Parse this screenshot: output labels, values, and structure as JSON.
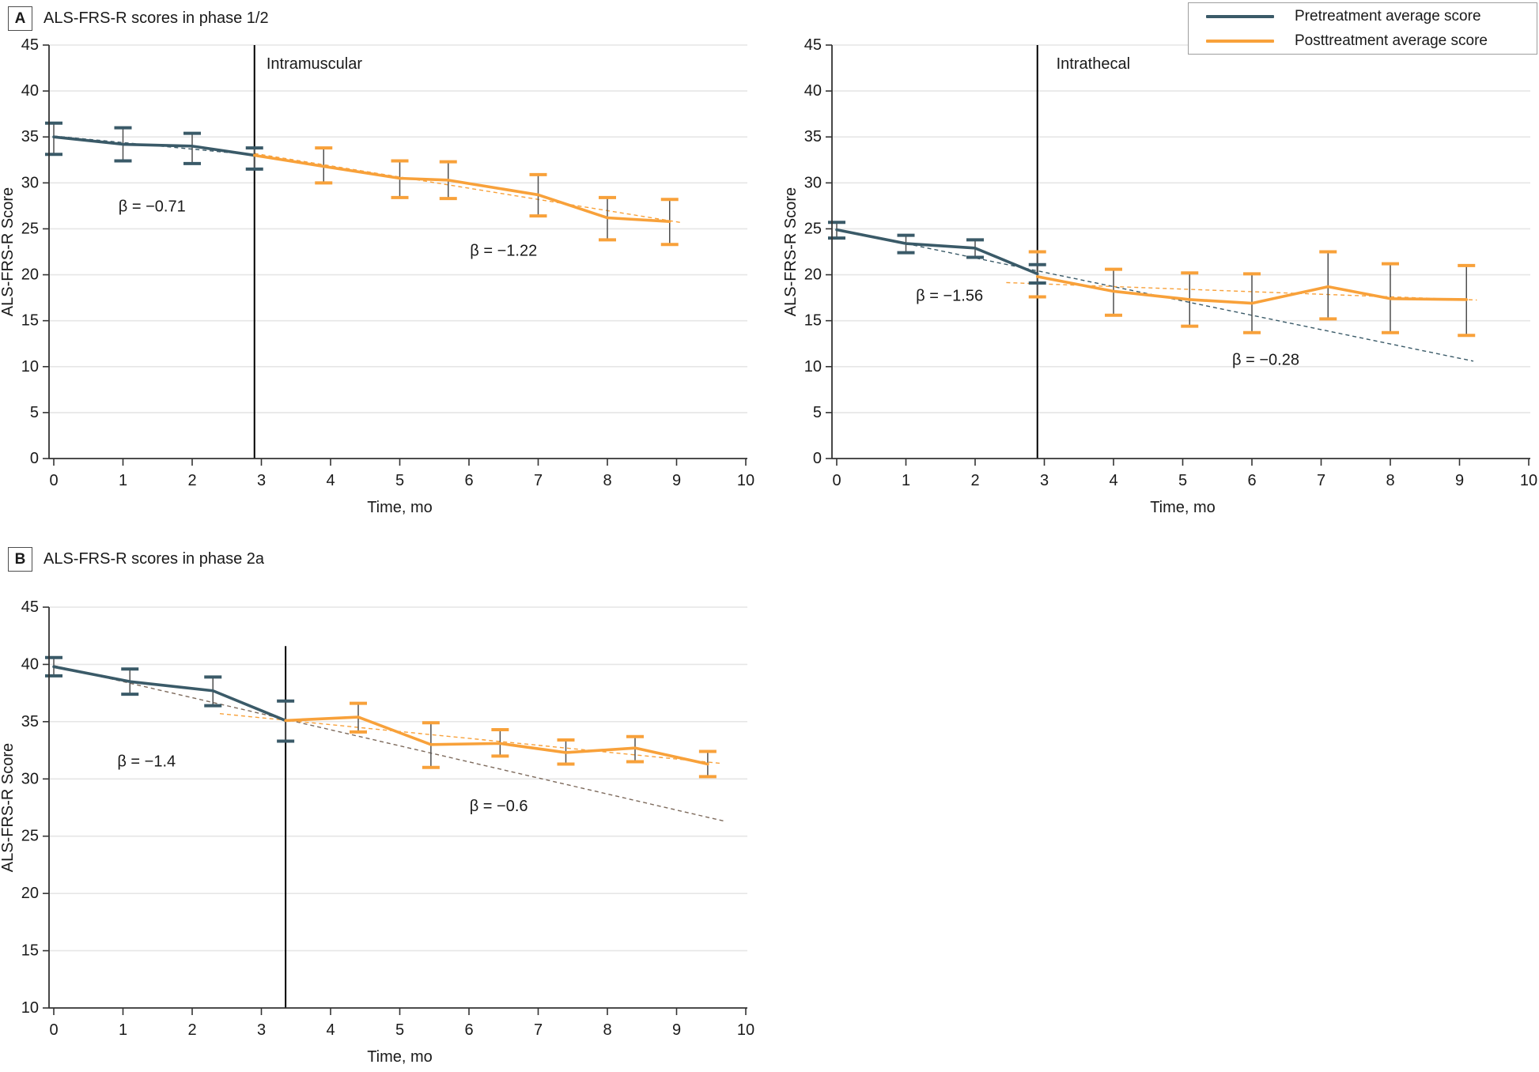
{
  "panels": [
    {
      "label": "A",
      "title": "ALS-FRS-R scores in phase 1/2"
    },
    {
      "label": "B",
      "title": "ALS-FRS-R scores in phase 2a"
    }
  ],
  "legend": {
    "items": [
      {
        "label": "Pretreatment average score",
        "color": "#3A5A68"
      },
      {
        "label": "Posttreatment average score",
        "color": "#F8A13A"
      }
    ]
  },
  "colors": {
    "pretreatment": "#3A5A68",
    "posttreatment": "#F8A13A",
    "error_stem": "#4f4f4f",
    "gridline": "#e6e6e6",
    "axis": "#333333",
    "treatment_line": "#000000",
    "trend_pre_phase2a": "#7d6a5c",
    "text": "#1a1a1a"
  },
  "chart_data": [
    {
      "type": "line",
      "id": "intramuscular",
      "panel": "A",
      "xlabel": "Time, mo",
      "ylabel": "ALS-FRS-R Score",
      "xlim": [
        0,
        10
      ],
      "ylim": [
        0,
        45
      ],
      "xticks": [
        0,
        1,
        2,
        3,
        4,
        5,
        6,
        7,
        8,
        9,
        10
      ],
      "yticks": [
        0,
        5,
        10,
        15,
        20,
        25,
        30,
        35,
        40,
        45
      ],
      "grid": "horizontal",
      "treatment_line": {
        "x": 2.9,
        "y_top": 45,
        "label": "Intramuscular",
        "label_x": 3.05,
        "label_y": 42.4
      },
      "series": [
        {
          "name": "Pretreatment average score",
          "color": "#3A5A68",
          "points": [
            {
              "x": 0,
              "y": 35.0,
              "lo": 33.1,
              "hi": 36.5
            },
            {
              "x": 1,
              "y": 34.2,
              "lo": 32.4,
              "hi": 36.0
            },
            {
              "x": 2,
              "y": 34.0,
              "lo": 32.1,
              "hi": 35.4
            },
            {
              "x": 2.9,
              "y": 33.0,
              "lo": 31.5,
              "hi": 33.8
            }
          ]
        },
        {
          "name": "Posttreatment average score",
          "color": "#F8A13A",
          "points": [
            {
              "x": 2.9,
              "y": 33.0
            },
            {
              "x": 3.9,
              "y": 31.8,
              "lo": 30.0,
              "hi": 33.8
            },
            {
              "x": 5.0,
              "y": 30.5,
              "lo": 28.4,
              "hi": 32.4
            },
            {
              "x": 5.7,
              "y": 30.3,
              "lo": 28.3,
              "hi": 32.3
            },
            {
              "x": 7.0,
              "y": 28.7,
              "lo": 26.4,
              "hi": 30.9
            },
            {
              "x": 8.0,
              "y": 26.2,
              "lo": 23.8,
              "hi": 28.4
            },
            {
              "x": 8.9,
              "y": 25.8,
              "lo": 23.3,
              "hi": 28.2
            }
          ]
        }
      ],
      "trend_lines": [
        {
          "name": "pretreatment-trend",
          "color": "#3A5A68",
          "x1": 0,
          "y1": 35.1,
          "x2": 2.95,
          "y2": 33.0
        },
        {
          "name": "posttreatment-trend",
          "color": "#F8A13A",
          "x1": 2.9,
          "y1": 33.2,
          "x2": 9.05,
          "y2": 25.7
        }
      ],
      "beta_annotations": [
        {
          "text": "β = −0.71",
          "x": 1.42,
          "y": 27.4
        },
        {
          "text": "β = −1.22",
          "x": 6.5,
          "y": 22.6
        }
      ]
    },
    {
      "type": "line",
      "id": "intrathecal",
      "panel": "A",
      "xlabel": "Time, mo",
      "ylabel": "ALS-FRS-R Score",
      "xlim": [
        0,
        10
      ],
      "ylim": [
        0,
        45
      ],
      "xticks": [
        0,
        1,
        2,
        3,
        4,
        5,
        6,
        7,
        8,
        9,
        10
      ],
      "yticks": [
        0,
        5,
        10,
        15,
        20,
        25,
        30,
        35,
        40,
        45
      ],
      "grid": "horizontal",
      "treatment_line": {
        "x": 2.9,
        "y_top": 45,
        "label": "Intrathecal",
        "label_x": 3.15,
        "label_y": 42.4
      },
      "series": [
        {
          "name": "Pretreatment average score",
          "color": "#3A5A68",
          "points": [
            {
              "x": 0,
              "y": 24.9,
              "lo": 24.0,
              "hi": 25.7
            },
            {
              "x": 1,
              "y": 23.4,
              "lo": 22.4,
              "hi": 24.3
            },
            {
              "x": 2,
              "y": 22.9,
              "lo": 21.9,
              "hi": 23.8
            },
            {
              "x": 2.9,
              "y": 20.1,
              "lo": 19.1,
              "hi": 21.1
            }
          ]
        },
        {
          "name": "Posttreatment average score",
          "color": "#F8A13A",
          "points": [
            {
              "x": 2.9,
              "y": 19.8,
              "lo": 17.6,
              "hi": 22.5
            },
            {
              "x": 4.0,
              "y": 18.2,
              "lo": 15.6,
              "hi": 20.6
            },
            {
              "x": 5.1,
              "y": 17.3,
              "lo": 14.4,
              "hi": 20.2
            },
            {
              "x": 6.0,
              "y": 16.9,
              "lo": 13.7,
              "hi": 20.1
            },
            {
              "x": 7.1,
              "y": 18.7,
              "lo": 15.2,
              "hi": 22.5
            },
            {
              "x": 8.0,
              "y": 17.4,
              "lo": 13.7,
              "hi": 21.2
            },
            {
              "x": 9.1,
              "y": 17.3,
              "lo": 13.4,
              "hi": 21.0
            }
          ]
        }
      ],
      "trend_lines": [
        {
          "name": "pretreatment-trend",
          "color": "#3A5A68",
          "x1": 0,
          "y1": 24.95,
          "x2": 9.2,
          "y2": 10.6
        },
        {
          "name": "posttreatment-trend",
          "color": "#F8A13A",
          "x1": 2.45,
          "y1": 19.15,
          "x2": 9.25,
          "y2": 17.25
        }
      ],
      "beta_annotations": [
        {
          "text": "β = −1.56",
          "x": 1.63,
          "y": 17.7
        },
        {
          "text": "β = −0.28",
          "x": 6.2,
          "y": 10.7
        }
      ]
    },
    {
      "type": "line",
      "id": "phase-2a",
      "panel": "B",
      "xlabel": "Time, mo",
      "ylabel": "ALS-FRS-R Score",
      "xlim": [
        0,
        10
      ],
      "ylim": [
        10,
        45
      ],
      "xticks": [
        0,
        1,
        2,
        3,
        4,
        5,
        6,
        7,
        8,
        9,
        10
      ],
      "yticks": [
        10,
        15,
        20,
        25,
        30,
        35,
        40,
        45
      ],
      "grid": "horizontal",
      "treatment_line": {
        "x": 3.35,
        "y_top": 41.6,
        "label": "",
        "label_x": 0,
        "label_y": 0
      },
      "series": [
        {
          "name": "Pretreatment average score",
          "color": "#3A5A68",
          "points": [
            {
              "x": 0,
              "y": 39.8,
              "lo": 39.0,
              "hi": 40.6
            },
            {
              "x": 1.1,
              "y": 38.5,
              "lo": 37.4,
              "hi": 39.6
            },
            {
              "x": 2.3,
              "y": 37.7,
              "lo": 36.4,
              "hi": 38.9
            },
            {
              "x": 3.35,
              "y": 35.1,
              "lo": 33.3,
              "hi": 36.8
            }
          ]
        },
        {
          "name": "Posttreatment average score",
          "color": "#F8A13A",
          "points": [
            {
              "x": 3.35,
              "y": 35.1
            },
            {
              "x": 4.4,
              "y": 35.4,
              "lo": 34.1,
              "hi": 36.6
            },
            {
              "x": 5.45,
              "y": 33.0,
              "lo": 31.0,
              "hi": 34.9
            },
            {
              "x": 6.45,
              "y": 33.1,
              "lo": 32.0,
              "hi": 34.3
            },
            {
              "x": 7.4,
              "y": 32.3,
              "lo": 31.3,
              "hi": 33.4
            },
            {
              "x": 8.4,
              "y": 32.7,
              "lo": 31.5,
              "hi": 33.7
            },
            {
              "x": 9.45,
              "y": 31.3,
              "lo": 30.2,
              "hi": 32.4
            }
          ]
        }
      ],
      "trend_lines": [
        {
          "name": "pretreatment-trend",
          "color": "#7d6a5c",
          "x1": 0,
          "y1": 39.9,
          "x2": 9.7,
          "y2": 26.3
        },
        {
          "name": "posttreatment-trend",
          "color": "#F8A13A",
          "x1": 2.4,
          "y1": 35.7,
          "x2": 9.65,
          "y2": 31.35
        }
      ],
      "beta_annotations": [
        {
          "text": "β = −1.4",
          "x": 1.34,
          "y": 31.5
        },
        {
          "text": "β = −0.6",
          "x": 6.43,
          "y": 27.6
        }
      ]
    }
  ]
}
